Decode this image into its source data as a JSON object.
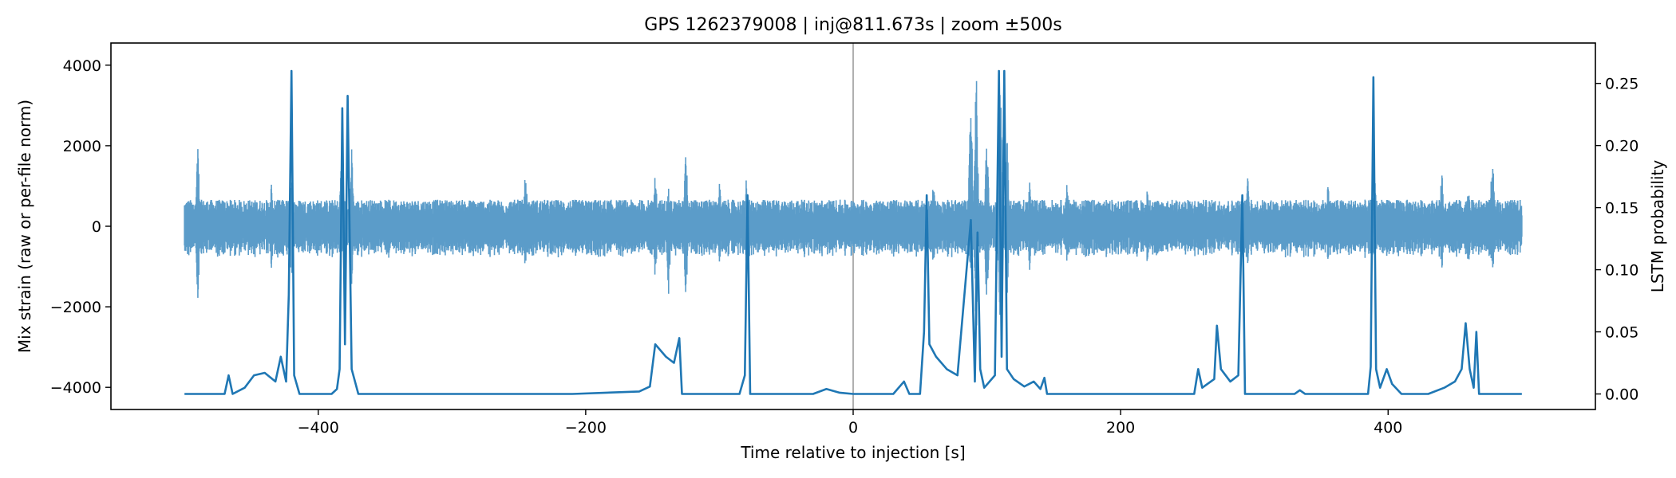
{
  "chart_data": {
    "type": "line",
    "title": "GPS 1262379008 | inj@811.673s | zoom ±500s",
    "xlabel": "Time relative to injection [s]",
    "ylabel_left": "Mix strain (raw or per-file norm)",
    "ylabel_right": "LSTM probability",
    "xlim": [
      -555,
      555
    ],
    "ylim_left": [
      -4550,
      4550
    ],
    "ylim_right": [
      -0.0125,
      0.2825
    ],
    "x_ticks": [
      -400,
      -200,
      0,
      200,
      400
    ],
    "x_tick_labels": [
      "−400",
      "−200",
      "0",
      "200",
      "400"
    ],
    "y_left_ticks": [
      -4000,
      -2000,
      0,
      2000,
      4000
    ],
    "y_left_tick_labels": [
      "−4000",
      "−2000",
      "0",
      "2000",
      "4000"
    ],
    "y_right_ticks": [
      0,
      0.05,
      0.1,
      0.15,
      0.2,
      0.25
    ],
    "y_right_tick_labels": [
      "0.00",
      "0.05",
      "0.10",
      "0.15",
      "0.20",
      "0.25"
    ],
    "vline_x": 0,
    "grid": false,
    "colors": {
      "strain": "#5b9cc9",
      "probability": "#1f77b4",
      "vline": "#b0b0b0"
    },
    "series": [
      {
        "axis": "left",
        "kind": "noise-band",
        "x_range": [
          -500,
          500
        ],
        "baseline": 0,
        "typical_amplitude": 550,
        "bursts": [
          {
            "x": -490,
            "max": 2100,
            "min": -1950
          },
          {
            "x": -435,
            "max": 1100,
            "min": -1100
          },
          {
            "x": -420,
            "max": 1400,
            "min": -1500
          },
          {
            "x": -383,
            "max": 1400,
            "min": -1000
          },
          {
            "x": -375,
            "max": 2000,
            "min": -1500
          },
          {
            "x": -245,
            "max": 1500,
            "min": -1200
          },
          {
            "x": -148,
            "max": 1500,
            "min": -1500
          },
          {
            "x": -138,
            "max": 1000,
            "min": -1800
          },
          {
            "x": -125,
            "max": 2100,
            "min": -2000
          },
          {
            "x": -100,
            "max": 1200,
            "min": -1000
          },
          {
            "x": -80,
            "max": 1200,
            "min": -900
          },
          {
            "x": 60,
            "max": 1200,
            "min": -1100
          },
          {
            "x": 88,
            "max": 3900,
            "min": -1500
          },
          {
            "x": 92,
            "max": 4100,
            "min": -2800
          },
          {
            "x": 100,
            "max": 2500,
            "min": -2200
          },
          {
            "x": 110,
            "max": 4000,
            "min": -2700
          },
          {
            "x": 115,
            "max": 2500,
            "min": -2000
          },
          {
            "x": 132,
            "max": 1100,
            "min": -1100
          },
          {
            "x": 160,
            "max": 1200,
            "min": -1000
          },
          {
            "x": 220,
            "max": 1000,
            "min": -1000
          },
          {
            "x": 295,
            "max": 1300,
            "min": -1000
          },
          {
            "x": 355,
            "max": 1200,
            "min": -1000
          },
          {
            "x": 390,
            "max": 1300,
            "min": -900
          },
          {
            "x": 440,
            "max": 1600,
            "min": -1300
          },
          {
            "x": 460,
            "max": 1200,
            "min": -1300
          },
          {
            "x": 478,
            "max": 2100,
            "min": -1500
          }
        ]
      },
      {
        "axis": "right",
        "kind": "line",
        "points": [
          [
            -500,
            0
          ],
          [
            -470,
            0
          ],
          [
            -467,
            0.015
          ],
          [
            -464,
            0
          ],
          [
            -455,
            0.005
          ],
          [
            -448,
            0.015
          ],
          [
            -440,
            0.017
          ],
          [
            -432,
            0.01
          ],
          [
            -428,
            0.03
          ],
          [
            -424,
            0.01
          ],
          [
            -422,
            0.08
          ],
          [
            -420,
            0.26
          ],
          [
            -418,
            0.015
          ],
          [
            -414,
            0
          ],
          [
            -390,
            0
          ],
          [
            -386,
            0.004
          ],
          [
            -384,
            0.02
          ],
          [
            -382,
            0.23
          ],
          [
            -380,
            0.04
          ],
          [
            -378,
            0.24
          ],
          [
            -375,
            0.02
          ],
          [
            -370,
            0
          ],
          [
            -310,
            0
          ],
          [
            -255,
            0
          ],
          [
            -210,
            0
          ],
          [
            -160,
            0.002
          ],
          [
            -152,
            0.006
          ],
          [
            -148,
            0.04
          ],
          [
            -140,
            0.03
          ],
          [
            -134,
            0.025
          ],
          [
            -130,
            0.045
          ],
          [
            -128,
            0
          ],
          [
            -85,
            0
          ],
          [
            -81,
            0.015
          ],
          [
            -79,
            0.16
          ],
          [
            -77,
            0
          ],
          [
            -30,
            0
          ],
          [
            -20,
            0.004
          ],
          [
            -10,
            0.001
          ],
          [
            0,
            0
          ],
          [
            30,
            0
          ],
          [
            38,
            0.01
          ],
          [
            42,
            0
          ],
          [
            50,
            0
          ],
          [
            53,
            0.05
          ],
          [
            55,
            0.16
          ],
          [
            57,
            0.04
          ],
          [
            62,
            0.03
          ],
          [
            70,
            0.02
          ],
          [
            78,
            0.015
          ],
          [
            88,
            0.14
          ],
          [
            91,
            0.01
          ],
          [
            93,
            0.13
          ],
          [
            95,
            0.02
          ],
          [
            98,
            0.005
          ],
          [
            106,
            0.015
          ],
          [
            109,
            0.26
          ],
          [
            111,
            0.03
          ],
          [
            113,
            0.26
          ],
          [
            115,
            0.02
          ],
          [
            120,
            0.012
          ],
          [
            128,
            0.006
          ],
          [
            135,
            0.01
          ],
          [
            140,
            0.004
          ],
          [
            143,
            0.013
          ],
          [
            145,
            0
          ],
          [
            200,
            0
          ],
          [
            255,
            0
          ],
          [
            258,
            0.02
          ],
          [
            261,
            0.005
          ],
          [
            270,
            0.012
          ],
          [
            272,
            0.055
          ],
          [
            275,
            0.02
          ],
          [
            282,
            0.01
          ],
          [
            288,
            0.015
          ],
          [
            291,
            0.16
          ],
          [
            293,
            0
          ],
          [
            330,
            0
          ],
          [
            334,
            0.003
          ],
          [
            338,
            0
          ],
          [
            385,
            0
          ],
          [
            387,
            0.022
          ],
          [
            389,
            0.255
          ],
          [
            391,
            0.02
          ],
          [
            394,
            0.005
          ],
          [
            399,
            0.02
          ],
          [
            403,
            0.008
          ],
          [
            410,
            0
          ],
          [
            430,
            0
          ],
          [
            442,
            0.005
          ],
          [
            450,
            0.01
          ],
          [
            455,
            0.02
          ],
          [
            458,
            0.057
          ],
          [
            461,
            0.02
          ],
          [
            464,
            0.005
          ],
          [
            466,
            0.05
          ],
          [
            468,
            0
          ],
          [
            500,
            0
          ]
        ]
      }
    ]
  }
}
